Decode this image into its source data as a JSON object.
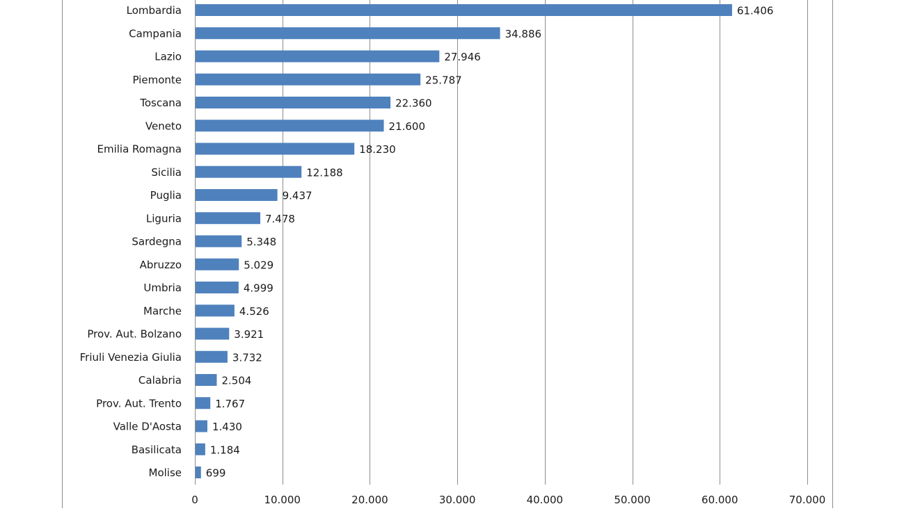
{
  "chart_data": {
    "type": "bar",
    "orientation": "horizontal",
    "categories": [
      "Lombardia",
      "Campania",
      "Lazio",
      "Piemonte",
      "Toscana",
      "Veneto",
      "Emilia Romagna",
      "Sicilia",
      "Puglia",
      "Liguria",
      "Sardegna",
      "Abruzzo",
      "Umbria",
      "Marche",
      "Prov. Aut. Bolzano",
      "Friuli Venezia Giulia",
      "Calabria",
      "Prov. Aut. Trento",
      "Valle D'Aosta",
      "Basilicata",
      "Molise"
    ],
    "values": [
      61406,
      34886,
      27946,
      25787,
      22360,
      21600,
      18230,
      12188,
      9437,
      7478,
      5348,
      5029,
      4999,
      4526,
      3921,
      3732,
      2504,
      1767,
      1430,
      1184,
      699
    ],
    "value_labels": [
      "61.406",
      "34.886",
      "27.946",
      "25.787",
      "22.360",
      "21.600",
      "18.230",
      "12.188",
      "9.437",
      "7.478",
      "5.348",
      "5.029",
      "4.999",
      "4.526",
      "3.921",
      "3.732",
      "2.504",
      "1.767",
      "1.430",
      "1.184",
      "699"
    ],
    "x_ticks": [
      0,
      10000,
      20000,
      30000,
      40000,
      50000,
      60000,
      70000
    ],
    "x_tick_labels": [
      "0",
      "10.000",
      "20.000",
      "30.000",
      "40.000",
      "50.000",
      "60.000",
      "70.000"
    ],
    "xlim": [
      0,
      70000
    ],
    "grid": "vertical",
    "legend": "none",
    "title": "",
    "xlabel": "",
    "ylabel": "",
    "bar_color": "#4f81bd",
    "grid_color": "#8c8c8c"
  }
}
